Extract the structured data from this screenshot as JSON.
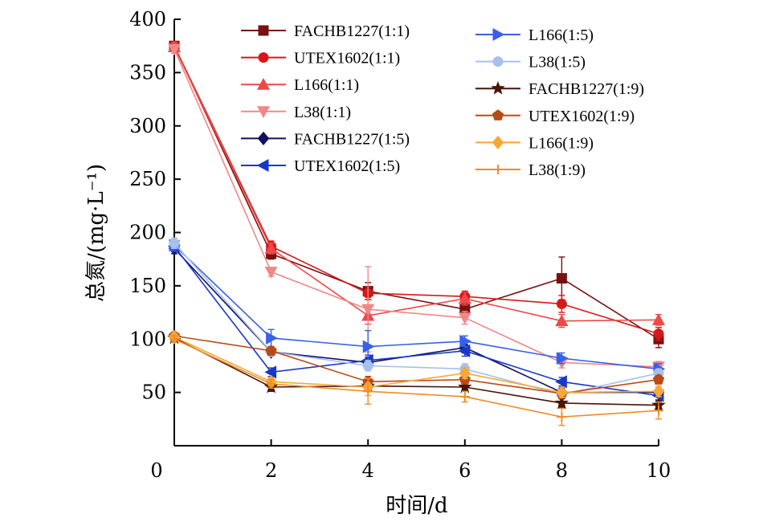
{
  "chart_data": {
    "type": "line",
    "title": "",
    "xlabel": "时间/d",
    "ylabel": "总氮/(mg·L⁻¹)",
    "xlim": [
      0,
      10
    ],
    "ylim": [
      0,
      400
    ],
    "x_ticks": [
      "0",
      "2",
      "4",
      "6",
      "8",
      "10"
    ],
    "y_ticks": [
      "50",
      "100",
      "150",
      "200",
      "250",
      "300",
      "350",
      "400"
    ],
    "grid": false,
    "legend": "top-right, two columns",
    "x": [
      0,
      2,
      4,
      6,
      8,
      10
    ],
    "series": [
      {
        "name": "FACHB1227(1:1)",
        "color": "#7a1010",
        "marker": "square",
        "values": [
          375,
          180,
          145,
          128,
          157,
          100
        ],
        "errors": [
          4,
          5,
          8,
          5,
          20,
          8
        ]
      },
      {
        "name": "UTEX1602(1:1)",
        "color": "#d81818",
        "marker": "circle",
        "values": [
          375,
          187,
          143,
          140,
          133,
          105
        ],
        "errors": [
          4,
          5,
          6,
          5,
          8,
          6
        ]
      },
      {
        "name": "L166(1:1)",
        "color": "#f04848",
        "marker": "triangle-up",
        "values": [
          374,
          185,
          122,
          138,
          117,
          118
        ],
        "errors": [
          4,
          5,
          8,
          6,
          6,
          5
        ]
      },
      {
        "name": "L38(1:1)",
        "color": "#f08888",
        "marker": "triangle-down",
        "values": [
          372,
          163,
          128,
          120,
          78,
          74
        ],
        "errors": [
          4,
          4,
          40,
          6,
          5,
          5
        ]
      },
      {
        "name": "FACHB1227(1:5)",
        "color": "#101060",
        "marker": "diamond",
        "values": [
          185,
          88,
          78,
          92,
          50,
          50
        ],
        "errors": [
          5,
          4,
          5,
          5,
          4,
          4
        ]
      },
      {
        "name": "UTEX1602(1:5)",
        "color": "#1838c8",
        "marker": "triangle-left",
        "values": [
          187,
          69,
          80,
          89,
          60,
          47
        ],
        "errors": [
          5,
          4,
          5,
          5,
          4,
          4
        ]
      },
      {
        "name": "L166(1:5)",
        "color": "#3860e8",
        "marker": "triangle-right",
        "values": [
          188,
          101,
          93,
          98,
          82,
          72
        ],
        "errors": [
          5,
          8,
          15,
          5,
          5,
          5
        ]
      },
      {
        "name": "L38(1:5)",
        "color": "#a8c0ec",
        "marker": "circle",
        "values": [
          190,
          88,
          75,
          72,
          48,
          68
        ],
        "errors": [
          5,
          4,
          5,
          5,
          4,
          4
        ]
      },
      {
        "name": "FACHB1227(1:9)",
        "color": "#4a1408",
        "marker": "star",
        "values": [
          101,
          55,
          56,
          55,
          40,
          38
        ],
        "errors": [
          3,
          4,
          5,
          4,
          4,
          4
        ]
      },
      {
        "name": "UTEX1602(1:9)",
        "color": "#b84a18",
        "marker": "pentagon",
        "values": [
          103,
          89,
          60,
          62,
          49,
          62
        ],
        "errors": [
          3,
          4,
          5,
          4,
          4,
          4
        ]
      },
      {
        "name": "L166(1:9)",
        "color": "#f8a838",
        "marker": "diamond",
        "values": [
          102,
          60,
          55,
          68,
          50,
          51
        ],
        "errors": [
          3,
          4,
          8,
          5,
          5,
          5
        ]
      },
      {
        "name": "L38(1:9)",
        "color": "#f08c28",
        "marker": "plus",
        "values": [
          100,
          58,
          51,
          46,
          27,
          33
        ],
        "errors": [
          3,
          4,
          12,
          5,
          8,
          8
        ]
      }
    ]
  }
}
